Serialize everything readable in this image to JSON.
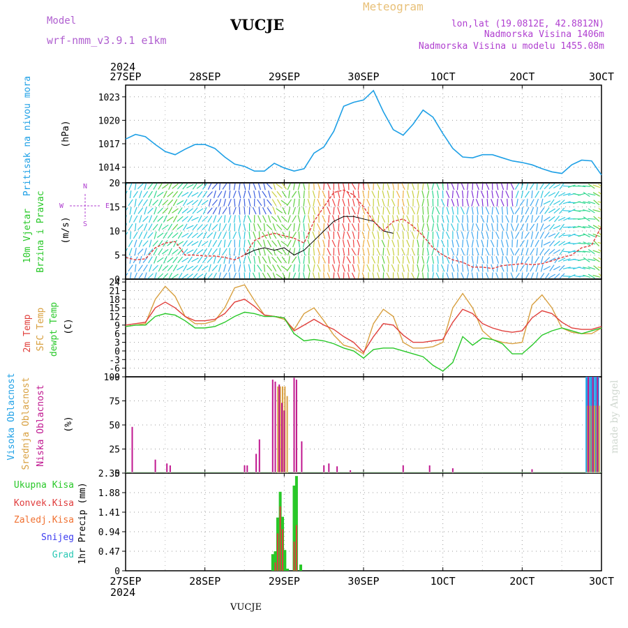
{
  "header": {
    "model_label": "Model",
    "model_name": "wrf-nmm_v3.9.1 e1km",
    "station_title": "VUCJE",
    "product": "Meteogram",
    "lonlat": "lon,lat (19.0812E, 42.8812N)",
    "altitude": "Nadmorska Visina 1406m",
    "model_altitude": "Nadmorska Visina u modelu 1455.08m"
  },
  "footer": {
    "station": "VUCJE",
    "credit": "made by Angel"
  },
  "colors": {
    "pressure": "#1ea0e6",
    "wind_speed": "#e03c3c",
    "wind_gust": "#000000",
    "temp2m": "#e0403c",
    "sfc_temp": "#d8a040",
    "dewpt": "#28c828",
    "high_cloud": "#1ea0e6",
    "mid_cloud": "#d8a040",
    "low_cloud": "#c01890",
    "total_precip": "#28c828",
    "conv_precip": "#e03c3c",
    "frozen_precip": "#f07030",
    "snow": "#3c3cf0",
    "hail": "#28c8b4"
  },
  "chart_data": [
    {
      "type": "line",
      "name": "pressure",
      "x_ticks": [
        "27SEP",
        "28SEP",
        "29SEP",
        "30SEP",
        "1OCT",
        "2OCT",
        "3OCT"
      ],
      "x_tick_year": "2024",
      "xlim_hours": [
        0,
        144
      ],
      "ylabel_left": "Pritisak na nivou mora",
      "ylabel_unit": "(hPa)",
      "y_ticks": [
        1014,
        1017,
        1020,
        1023
      ],
      "ylim": [
        1012,
        1024.5
      ],
      "series": [
        {
          "x": [
            0,
            3,
            6,
            9,
            12,
            15,
            18,
            21,
            24,
            27,
            30,
            33,
            36,
            39,
            42,
            45,
            48,
            51,
            54,
            57,
            60,
            63,
            66,
            69,
            72,
            75,
            78,
            81,
            84,
            87,
            90,
            93,
            96,
            99,
            102,
            105,
            108,
            111,
            114,
            117,
            120,
            123,
            126,
            129,
            132,
            135,
            138,
            141,
            144
          ],
          "values": [
            1017.6,
            1018.2,
            1017.9,
            1016.9,
            1016.0,
            1015.6,
            1016.3,
            1016.9,
            1016.9,
            1016.4,
            1015.3,
            1014.4,
            1014.1,
            1013.5,
            1013.5,
            1014.5,
            1013.9,
            1013.5,
            1013.8,
            1015.8,
            1016.6,
            1018.6,
            1021.8,
            1022.3,
            1022.6,
            1023.8,
            1021.1,
            1018.8,
            1018.1,
            1019.5,
            1021.3,
            1020.4,
            1018.3,
            1016.4,
            1015.3,
            1015.2,
            1015.6,
            1015.6,
            1015.2,
            1014.8,
            1014.6,
            1014.3,
            1013.8,
            1013.4,
            1013.2,
            1014.3,
            1014.9,
            1014.8,
            1013.0
          ]
        }
      ]
    },
    {
      "type": "line",
      "name": "wind",
      "ylabel_left": "10m Vjetar",
      "ylabel_left2": "Brzina i Pravac",
      "ylabel_unit": "(m/s)",
      "y_ticks": [
        0,
        5,
        10,
        15,
        20
      ],
      "ylim": [
        0,
        20
      ],
      "compass": {
        "north": "N",
        "south": "S",
        "east": "E",
        "west": "W"
      },
      "series": [
        {
          "name": "speed",
          "x": [
            0,
            3,
            6,
            9,
            12,
            15,
            18,
            21,
            24,
            27,
            30,
            33,
            36,
            39,
            42,
            45,
            48,
            51,
            54,
            57,
            60,
            63,
            66,
            69,
            72,
            75,
            78,
            81,
            84,
            87,
            90,
            93,
            96,
            99,
            102,
            105,
            108,
            111,
            114,
            117,
            120,
            123,
            126,
            129,
            132,
            135,
            138,
            141,
            144
          ],
          "values": [
            4.5,
            4,
            4.2,
            6.5,
            7.5,
            7.8,
            5,
            5,
            4.8,
            4.8,
            4.5,
            4,
            5,
            8,
            9,
            9.5,
            9,
            8.5,
            7.5,
            12,
            15,
            18,
            18.5,
            17.5,
            15,
            12,
            10,
            12,
            12.5,
            11,
            9,
            6.5,
            5,
            4,
            3.5,
            2.5,
            2.5,
            2.2,
            2.8,
            3,
            3.2,
            3,
            3.2,
            3.8,
            4.5,
            5,
            6.5,
            7,
            11
          ]
        },
        {
          "name": "gust",
          "x": [
            36,
            39,
            42,
            45,
            48,
            51,
            54,
            57,
            60,
            63,
            66,
            69,
            72,
            75,
            78,
            81
          ],
          "values": [
            5,
            6,
            6.5,
            6,
            6.5,
            5,
            6,
            8,
            10,
            12,
            13,
            13,
            12.5,
            12,
            10,
            9.5
          ]
        }
      ],
      "wind_vectors_azimuth_deg": [
        200,
        200,
        210,
        210,
        220,
        220,
        225,
        230,
        220,
        210,
        200,
        190,
        180,
        170,
        160,
        150,
        140,
        200,
        180,
        175,
        170,
        170,
        175,
        165,
        175,
        170,
        170,
        170,
        170,
        170,
        180,
        180,
        170,
        170,
        170,
        180,
        350,
        350,
        350,
        350,
        200,
        200,
        200,
        230,
        230,
        260,
        270,
        290,
        300
      ]
    },
    {
      "type": "line",
      "name": "temperature",
      "ylabel_left": "2m Temp",
      "ylabel_left2": "SFC Temp",
      "ylabel_left3": "dewpt Temp",
      "ylabel_unit": "(C)",
      "y_ticks": [
        -9,
        -6,
        -3,
        0,
        3,
        6,
        9,
        12,
        15,
        18,
        21,
        24
      ],
      "ylim": [
        -9,
        25
      ],
      "series": [
        {
          "name": "2m Temp",
          "x": [
            0,
            3,
            6,
            9,
            12,
            15,
            18,
            21,
            24,
            27,
            30,
            33,
            36,
            39,
            42,
            45,
            48,
            51,
            54,
            57,
            60,
            63,
            66,
            69,
            72,
            75,
            78,
            81,
            84,
            87,
            90,
            93,
            96,
            99,
            102,
            105,
            108,
            111,
            114,
            117,
            120,
            123,
            126,
            129,
            132,
            135,
            138,
            141,
            144
          ],
          "values": [
            9,
            9.5,
            10,
            15,
            17,
            15,
            12,
            10.5,
            10.5,
            11,
            13,
            17,
            18,
            15.5,
            12.5,
            12,
            11.5,
            7,
            9,
            11,
            9,
            7.5,
            5,
            3,
            -0.5,
            5,
            9.5,
            9,
            5.5,
            3,
            3,
            3.5,
            4,
            10,
            14.5,
            13,
            9.5,
            8,
            7,
            6.5,
            7,
            11.5,
            14,
            13,
            10,
            8,
            7.5,
            7.5,
            8.5
          ]
        },
        {
          "name": "SFC Temp",
          "x": [
            0,
            3,
            6,
            9,
            12,
            15,
            18,
            21,
            24,
            27,
            30,
            33,
            36,
            39,
            42,
            45,
            48,
            51,
            54,
            57,
            60,
            63,
            66,
            69,
            72,
            75,
            78,
            81,
            84,
            87,
            90,
            93,
            96,
            99,
            102,
            105,
            108,
            111,
            114,
            117,
            120,
            123,
            126,
            129,
            132,
            135,
            138,
            141,
            144
          ],
          "values": [
            8.5,
            9,
            9.5,
            18,
            22.5,
            19,
            12,
            9.5,
            9.5,
            10.5,
            15,
            22,
            23,
            17.5,
            12.5,
            12,
            11,
            7.5,
            13,
            15,
            10.5,
            5.5,
            2,
            1,
            -1,
            9.5,
            14.5,
            12,
            3,
            1,
            1,
            1.5,
            3,
            15,
            20,
            15,
            7,
            4,
            3,
            2.5,
            3,
            16,
            19.5,
            15,
            8,
            6.5,
            6,
            6,
            8
          ]
        },
        {
          "name": "dewpt Temp",
          "x": [
            0,
            3,
            6,
            9,
            12,
            15,
            18,
            21,
            24,
            27,
            30,
            33,
            36,
            39,
            42,
            45,
            48,
            51,
            54,
            57,
            60,
            63,
            66,
            69,
            72,
            75,
            78,
            81,
            84,
            87,
            90,
            93,
            96,
            99,
            102,
            105,
            108,
            111,
            114,
            117,
            120,
            123,
            126,
            129,
            132,
            135,
            138,
            141,
            144
          ],
          "values": [
            8.5,
            9,
            9,
            12,
            13,
            12.5,
            10.5,
            8,
            8,
            8.5,
            10,
            12,
            13.5,
            13,
            12,
            12,
            11.5,
            6,
            3.5,
            4,
            3.5,
            2.5,
            1,
            0,
            -2.5,
            0.5,
            1,
            1,
            0,
            -1,
            -2,
            -5,
            -7,
            -4,
            5,
            2,
            4.5,
            4,
            2.5,
            -1,
            -1,
            2,
            5.5,
            7,
            8,
            7,
            6,
            7,
            8
          ]
        }
      ]
    },
    {
      "type": "bar",
      "name": "cloud",
      "ylabel_left": "Visoka Oblacnost",
      "ylabel_left2": "Srednja Oblacnost",
      "ylabel_left3": "Niska Oblacnost",
      "ylabel_unit": "(%)",
      "y_ticks": [
        0,
        25,
        50,
        75,
        100
      ],
      "ylim": [
        0,
        100
      ],
      "series": [
        {
          "name": "Visoka Oblacnost",
          "x": [
            139.5,
            140.2,
            140.9,
            141.6,
            142.3,
            143.0
          ],
          "values": [
            100,
            100,
            100,
            100,
            100,
            100
          ]
        },
        {
          "name": "Srednja Oblacnost",
          "x": [
            46.1,
            46.8,
            47.5,
            48.2,
            48.9,
            51.0,
            51.7,
            139.8,
            140.5,
            141.2,
            141.9,
            142.6,
            143.3
          ],
          "values": [
            90,
            90,
            90,
            90,
            80,
            85,
            75,
            70,
            70,
            70,
            70,
            70,
            70
          ]
        },
        {
          "name": "Niska Oblacnost",
          "x": [
            2,
            9,
            12.5,
            13.5,
            36,
            36.8,
            39.5,
            40.5,
            44.5,
            45.3,
            46.5,
            47.3,
            48.0,
            51.0,
            51.7,
            53.3,
            60,
            61.5,
            64,
            68,
            84,
            92,
            99,
            123,
            140,
            141.4,
            142.8
          ],
          "values": [
            48,
            14,
            10,
            8,
            8,
            8,
            20,
            35,
            97,
            95,
            92,
            73,
            65,
            99,
            97,
            33,
            8,
            10,
            7,
            3,
            8,
            8,
            5,
            4,
            100,
            100,
            100
          ]
        }
      ]
    },
    {
      "type": "bar",
      "name": "precip",
      "ylabel_left": "1hr Precip (mm)",
      "ylabel_unit": "(mm)",
      "legend": [
        "Ukupna Kisa",
        "Konvek.Kisa",
        "Zaledj.Kisa",
        "Snijeg",
        "Grad"
      ],
      "y_ticks": [
        0,
        0.47,
        0.94,
        1.41,
        1.88,
        2.35
      ],
      "y_tick_labels": [
        "0",
        "0.47",
        "0.94",
        "1.41",
        "1.88",
        "2.35"
      ],
      "ylim": [
        0,
        2.35
      ],
      "series": [
        {
          "name": "Ukupna Kisa",
          "x": [
            44.5,
            45.3,
            46.0,
            46.8,
            47.5,
            48.2,
            49.0,
            51.0,
            51.7,
            53.0
          ],
          "values": [
            0.4,
            0.47,
            1.28,
            1.9,
            1.3,
            0.5,
            0.05,
            2.05,
            2.28,
            0.15
          ]
        },
        {
          "name": "Konvek.Kisa",
          "x": [
            45.3,
            46.0,
            46.8,
            47.5,
            51.0,
            51.7
          ],
          "values": [
            0.2,
            0.9,
            1.55,
            1.0,
            0.7,
            1.1
          ]
        }
      ]
    }
  ]
}
